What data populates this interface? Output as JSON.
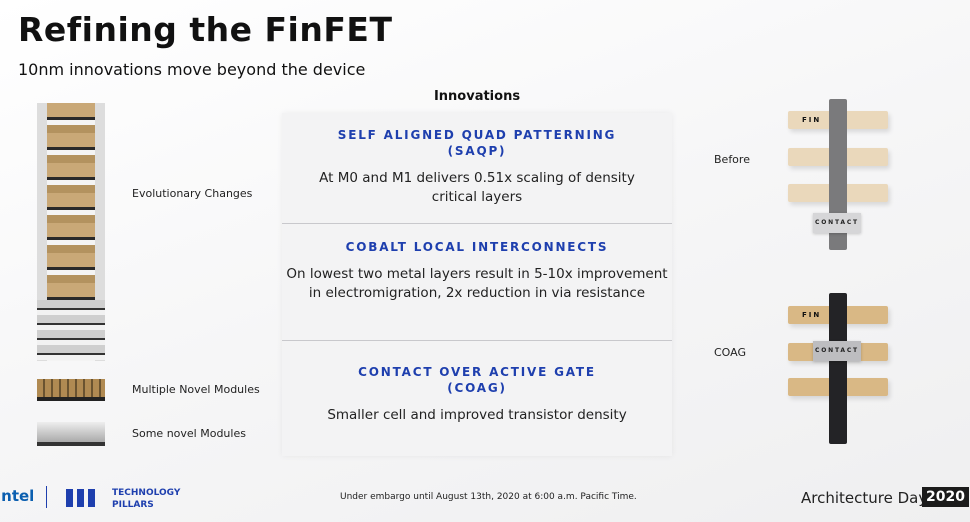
{
  "title": "Refining the FinFET",
  "subtitle": "10nm innovations move beyond the device",
  "innovations_heading": "Innovations",
  "innovations": [
    {
      "title_line1": "SELF ALIGNED QUAD PATTERNING",
      "title_line2": "(SAQP)",
      "desc_line1": "At M0 and M1 delivers 0.51x scaling of density",
      "desc_line2": "critical layers"
    },
    {
      "title_line1": "COBALT LOCAL INTERCONNECTS",
      "desc_line1": "On lowest two metal layers result in 5-10x improvement",
      "desc_line2": "in electromigration, 2x reduction in via resistance"
    },
    {
      "title_line1": "CONTACT OVER ACTIVE GATE",
      "title_line2": "(COAG)",
      "desc_line1": "Smaller cell and improved transistor density"
    }
  ],
  "left_labels": [
    "Evolutionary Changes",
    "Multiple Novel Modules",
    "Some novel Modules"
  ],
  "diagram": {
    "before_label": "Before",
    "coag_label": "COAG",
    "fin_label": "FIN",
    "contact_label": "CONTACT"
  },
  "footer": {
    "logo": "intel",
    "pillars_line1": "TECHNOLOGY",
    "pillars_line2": "PILLARS",
    "embargo": "Under embargo until August 13th, 2020 at 6:00 a.m. Pacific Time.",
    "event": "Architecture Day",
    "year": "2020"
  },
  "colors": {
    "accent": "#1e3fae",
    "fin_light": "#ead8bb",
    "fin_dark": "#d9b885",
    "gate_before": "#7a7a7c",
    "gate_coag": "#232326"
  }
}
